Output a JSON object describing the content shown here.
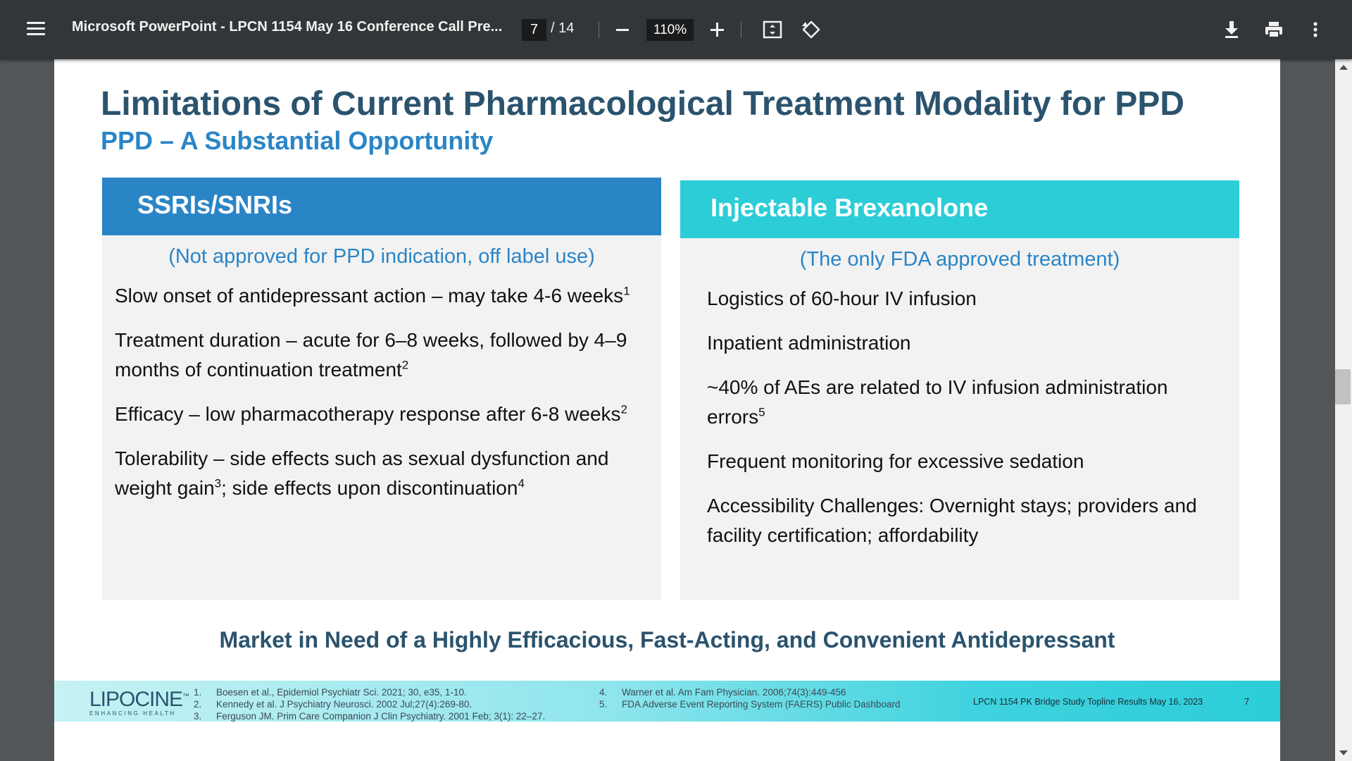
{
  "toolbar": {
    "menu_icon": "hamburger-menu-icon",
    "title": "Microsoft PowerPoint - LPCN 1154 May 16 Conference Call Pre...",
    "page_current": "7",
    "page_total": "/ 14",
    "zoom": "110%",
    "icons": [
      "zoom-out-icon",
      "zoom-in-icon",
      "fit-page-icon",
      "rotate-icon",
      "download-icon",
      "print-icon",
      "more-vert-icon"
    ]
  },
  "slide": {
    "title": "Limitations of Current Pharmacological Treatment Modality for PPD",
    "subtitle": "PPD – A Substantial Opportunity",
    "left_panel": {
      "heading": "SSRIs/SNRIs",
      "note": "(Not approved for PPD indication, off label use)",
      "bullets": [
        {
          "text": "Slow onset of antidepressant action – may take 4-6 weeks",
          "sup": "1"
        },
        {
          "text": "Treatment duration – acute for 6–8 weeks, followed by 4–9 months of continuation treatment",
          "sup": "2"
        },
        {
          "text": "Efficacy – low pharmacotherapy response after 6-8 weeks",
          "sup": "2"
        },
        {
          "text_a": "Tolerability – side effects such as sexual dysfunction and weight gain",
          "sup_a": "3",
          "text_b": "; side effects upon discontinuation",
          "sup_b": "4"
        }
      ]
    },
    "right_panel": {
      "heading": "Injectable Brexanolone",
      "note": "(The only FDA approved treatment)",
      "bullets": [
        {
          "text": "Logistics of 60-hour IV infusion"
        },
        {
          "text": "Inpatient administration"
        },
        {
          "text": "~40% of AEs are related to IV infusion administration errors",
          "sup": "5"
        },
        {
          "text": "Frequent monitoring for excessive sedation"
        },
        {
          "text": "Accessibility Challenges: Overnight stays; providers and facility certification; affordability"
        }
      ]
    },
    "tagline": "Market in Need of a Highly Efficacious, Fast-Acting, and Convenient Antidepressant",
    "footer": {
      "logo_text": "LIPOCINE",
      "logo_tm": "™",
      "logo_tagline": "ENHANCING HEALTH",
      "references_left": [
        {
          "num": "1.",
          "text": "Boesen et al., Epidemiol Psychiatr Sci. 2021; 30, e35, 1-10."
        },
        {
          "num": "2.",
          "text": "Kennedy et al. J Psychiatry Neurosci. 2002 Jul;27(4):269-80."
        },
        {
          "num": "3.",
          "text": "Ferguson JM. Prim Care Companion J Clin Psychiatry. 2001 Feb; 3(1): 22–27."
        }
      ],
      "references_right": [
        {
          "num": "4.",
          "text": "Warner et al. Am Fam Physician. 2006;74(3):449-456"
        },
        {
          "num": "5.",
          "text": "FDA Adverse Event Reporting System (FAERS) Public Dashboard"
        }
      ],
      "doc_label": "LPCN 1154 PK Bridge Study Topline Results May 16, 2023",
      "page_number": "7"
    }
  },
  "colors": {
    "toolbar_bg": "#323639",
    "viewer_bg": "#525659",
    "title_navy": "#2b536e",
    "accent_blue": "#2a85c7",
    "accent_cyan": "#2ccdd7",
    "panel_bg": "#f2f2f2"
  }
}
